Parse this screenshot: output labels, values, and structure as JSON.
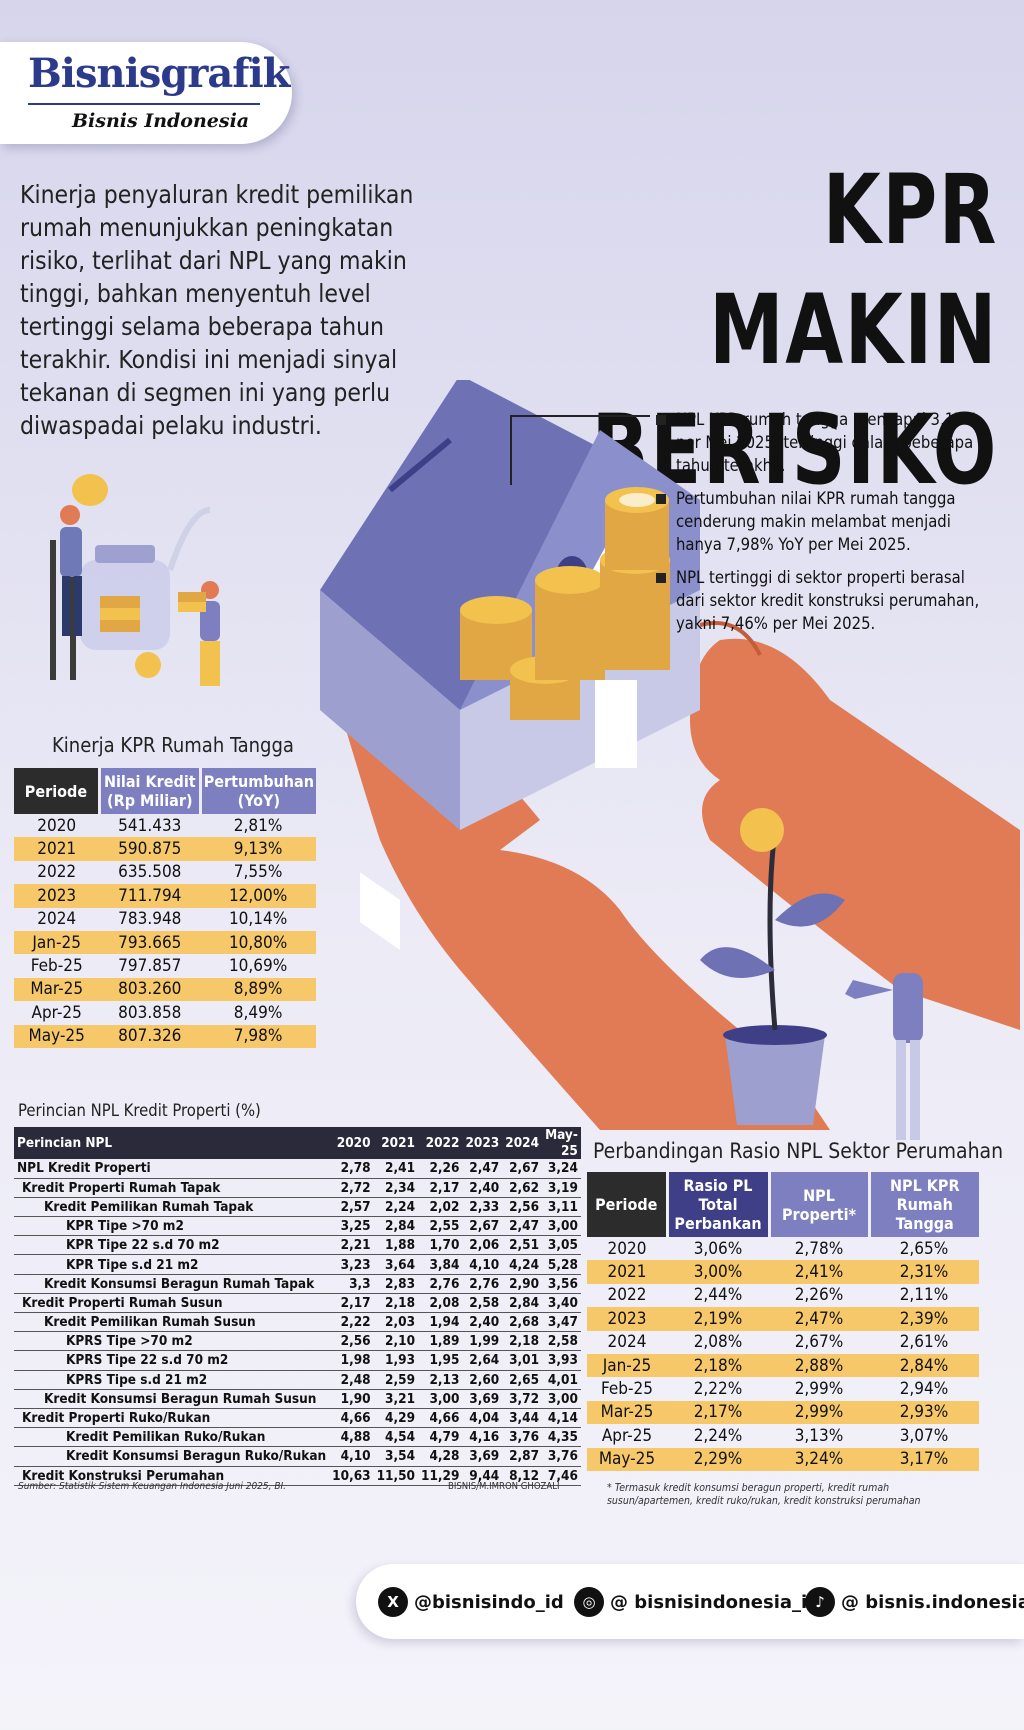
{
  "header": {
    "logo": "Bisnisgrafik",
    "sublogo": "Bisnis Indonesia"
  },
  "title": "KPR MAKIN BERISIKO",
  "intro": "Kinerja penyaluran kredit pemilikan rumah menunjukkan peningkatan risiko, terlihat dari NPL yang makin tinggi, bahkan menyentuh level tertinggi selama beberapa tahun terakhir. Kondisi ini menjadi sinyal tekanan di segmen ini yang perlu diwaspadai pelaku industri.",
  "bullets": [
    "NPL KPR rumah tangga mencapai 3,17% per Mei 2025, tertinggi dalam beberapa tahun terakhir.",
    "Pertumbuhan nilai KPR rumah tangga cenderung makin melambat menjadi hanya 7,98% YoY per Mei 2025.",
    "NPL tertinggi di sektor properti berasal dari sektor kredit konstruksi perumahan, yakni 7,46% per Mei 2025."
  ],
  "colors": {
    "accent": "#7d7fc0",
    "navy": "#3e3f87",
    "highlight": "#f6c86a",
    "hand": "#e07b55",
    "coin": "#f2c14e"
  },
  "chart_data": [
    {
      "type": "table",
      "title": "Kinerja KPR Rumah Tangga",
      "columns": [
        "Periode",
        "Nilai Kredit (Rp Miliar)",
        "Pertumbuhan (YoY)"
      ],
      "rows": [
        [
          "2020",
          "541.433",
          "2,81%"
        ],
        [
          "2021",
          "590.875",
          "9,13%"
        ],
        [
          "2022",
          "635.508",
          "7,55%"
        ],
        [
          "2023",
          "711.794",
          "12,00%"
        ],
        [
          "2024",
          "783.948",
          "10,14%"
        ],
        [
          "Jan-25",
          "793.665",
          "10,80%"
        ],
        [
          "Feb-25",
          "797.857",
          "10,69%"
        ],
        [
          "Mar-25",
          "803.260",
          "8,89%"
        ],
        [
          "Apr-25",
          "803.858",
          "8,49%"
        ],
        [
          "May-25",
          "807.326",
          "7,98%"
        ]
      ]
    },
    {
      "type": "table",
      "title": "Perincian NPL Kredit Properti (%)",
      "columns": [
        "Perincian NPL",
        "2020",
        "2021",
        "2022",
        "2023",
        "2024",
        "May-25"
      ],
      "rows": [
        [
          "NPL Kredit Properti",
          "2,78",
          "2,41",
          "2,26",
          "2,47",
          "2,67",
          "3,24"
        ],
        [
          "Kredit Properti Rumah Tapak",
          "2,72",
          "2,34",
          "2,17",
          "2,40",
          "2,62",
          "3,19"
        ],
        [
          "Kredit Pemilikan Rumah Tapak",
          "2,57",
          "2,24",
          "2,02",
          "2,33",
          "2,56",
          "3,11"
        ],
        [
          "KPR Tipe >70 m2",
          "3,25",
          "2,84",
          "2,55",
          "2,67",
          "2,47",
          "3,00"
        ],
        [
          "KPR Tipe 22 s.d 70 m2",
          "2,21",
          "1,88",
          "1,70",
          "2,06",
          "2,51",
          "3,05"
        ],
        [
          "KPR Tipe s.d 21 m2",
          "3,23",
          "3,64",
          "3,84",
          "4,10",
          "4,24",
          "5,28"
        ],
        [
          "Kredit Konsumsi Beragun Rumah Tapak",
          "3,3",
          "2,83",
          "2,76",
          "2,76",
          "2,90",
          "3,56"
        ],
        [
          "Kredit Properti Rumah Susun",
          "2,17",
          "2,18",
          "2,08",
          "2,58",
          "2,84",
          "3,40"
        ],
        [
          "Kredit Pemilikan Rumah Susun",
          "2,22",
          "2,03",
          "1,94",
          "2,40",
          "2,68",
          "3,47"
        ],
        [
          "KPRS Tipe >70 m2",
          "2,56",
          "2,10",
          "1,89",
          "1,99",
          "2,18",
          "2,58"
        ],
        [
          "KPRS Tipe 22 s.d 70 m2",
          "1,98",
          "1,93",
          "1,95",
          "2,64",
          "3,01",
          "3,93"
        ],
        [
          "KPRS Tipe s.d 21 m2",
          "2,48",
          "2,59",
          "2,13",
          "2,60",
          "2,65",
          "4,01"
        ],
        [
          "Kredit Konsumsi Beragun Rumah Susun",
          "1,90",
          "3,21",
          "3,00",
          "3,69",
          "3,72",
          "3,00"
        ],
        [
          "Kredit Properti Ruko/Rukan",
          "4,66",
          "4,29",
          "4,66",
          "4,04",
          "3,44",
          "4,14"
        ],
        [
          "Kredit Pemilikan Ruko/Rukan",
          "4,88",
          "4,54",
          "4,79",
          "4,16",
          "3,76",
          "4,35"
        ],
        [
          "Kredit Konsumsi Beragun Ruko/Rukan",
          "4,10",
          "3,54",
          "4,28",
          "3,69",
          "2,87",
          "3,76"
        ],
        [
          "Kredit Konstruksi Perumahan",
          "10,63",
          "11,50",
          "11,29",
          "9,44",
          "8,12",
          "7,46"
        ]
      ],
      "levels": [
        0,
        1,
        2,
        3,
        3,
        3,
        2,
        1,
        2,
        3,
        3,
        3,
        2,
        1,
        3,
        3,
        1
      ],
      "source": "Sumber: Statistik Sistem Keuangan Indonesia Juni 2025, BI.",
      "credit": "BISNIS/M.IMRON GHOZALI"
    },
    {
      "type": "table",
      "title": "Perbandingan Rasio NPL Sektor Perumahan",
      "columns": [
        "Periode",
        "Rasio PL Total Perbankan",
        "NPL Properti*",
        "NPL KPR Rumah Tangga"
      ],
      "rows": [
        [
          "2020",
          "3,06%",
          "2,78%",
          "2,65%"
        ],
        [
          "2021",
          "3,00%",
          "2,41%",
          "2,31%"
        ],
        [
          "2022",
          "2,44%",
          "2,26%",
          "2,11%"
        ],
        [
          "2023",
          "2,19%",
          "2,47%",
          "2,39%"
        ],
        [
          "2024",
          "2,08%",
          "2,67%",
          "2,61%"
        ],
        [
          "Jan-25",
          "2,18%",
          "2,88%",
          "2,84%"
        ],
        [
          "Feb-25",
          "2,22%",
          "2,99%",
          "2,94%"
        ],
        [
          "Mar-25",
          "2,17%",
          "2,99%",
          "2,93%"
        ],
        [
          "Apr-25",
          "2,24%",
          "3,13%",
          "3,07%"
        ],
        [
          "May-25",
          "2,29%",
          "3,24%",
          "3,17%"
        ]
      ],
      "note": "* Termasuk kredit konsumsi beragun properti, kredit rumah susun/apartemen, kredit ruko/rukan, kredit konstruksi perumahan"
    }
  ],
  "social": [
    {
      "icon": "x-icon",
      "glyph": "X",
      "handle": "@bisnisindo_id"
    },
    {
      "icon": "instagram-icon",
      "glyph": "◎",
      "handle": "@ bisnisindonesia_id"
    },
    {
      "icon": "tiktok-icon",
      "glyph": "♪",
      "handle": "@ bisnis.indonesia"
    }
  ]
}
